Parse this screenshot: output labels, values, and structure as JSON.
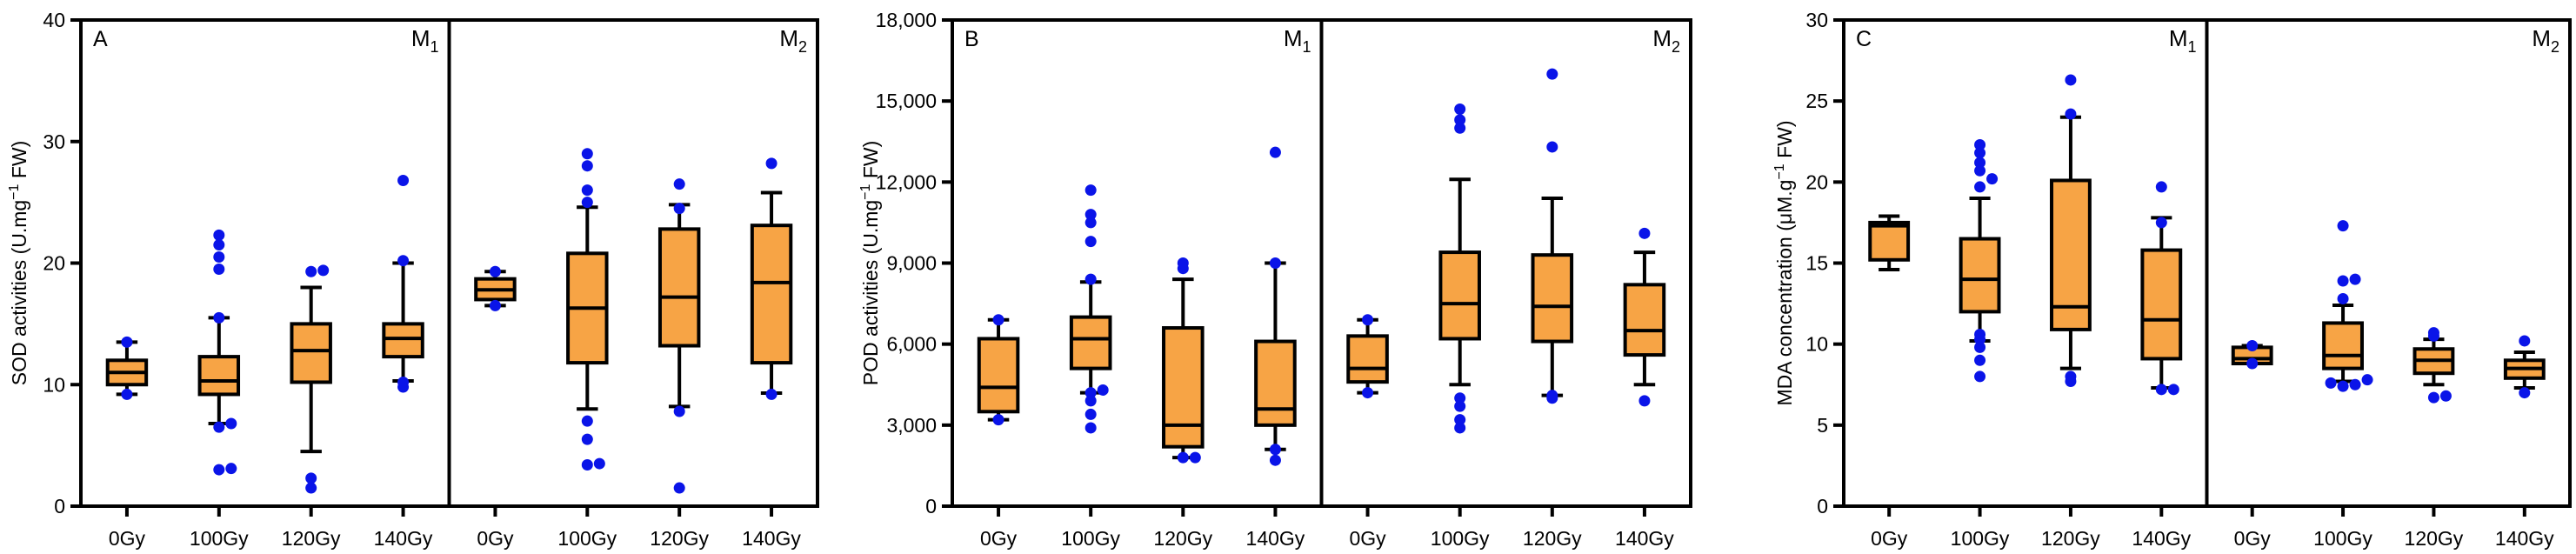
{
  "colors": {
    "box_fill": "#F7A445",
    "point": "#0A14E8",
    "line": "#000000"
  },
  "chart_data": [
    {
      "type": "box",
      "panel_label": "A",
      "ylabel_pre": "SOD activities (U.mg",
      "ylabel_sup": "−1",
      "ylabel_post": " FW)",
      "ylim": [
        0,
        40
      ],
      "yticks": [
        0,
        10,
        20,
        30,
        40
      ],
      "ytick_labels": [
        "0",
        "10",
        "20",
        "30",
        "40"
      ],
      "categories": [
        "0Gy",
        "100Gy",
        "120Gy",
        "140Gy"
      ],
      "groups": [
        {
          "name": "M",
          "sub": "1",
          "boxes": [
            {
              "category": "0Gy",
              "whisker_low": 9.2,
              "q1": 10.0,
              "median": 11.0,
              "q3": 12.0,
              "whisker_high": 13.5,
              "outliers": [
                9.2,
                13.5
              ]
            },
            {
              "category": "100Gy",
              "whisker_low": 6.8,
              "q1": 9.2,
              "median": 10.3,
              "q3": 12.3,
              "whisker_high": 15.5,
              "outliers": [
                3.0,
                3.1,
                6.5,
                6.8,
                15.5,
                19.5,
                20.5,
                21.5,
                22.3
              ]
            },
            {
              "category": "120Gy",
              "whisker_low": 4.5,
              "q1": 10.2,
              "median": 12.8,
              "q3": 15.0,
              "whisker_high": 18.0,
              "outliers": [
                1.5,
                2.3,
                19.3,
                19.4
              ]
            },
            {
              "category": "140Gy",
              "whisker_low": 10.3,
              "q1": 12.3,
              "median": 13.8,
              "q3": 15.0,
              "whisker_high": 20.0,
              "outliers": [
                9.8,
                10.2,
                20.2,
                26.8
              ]
            }
          ]
        },
        {
          "name": "M",
          "sub": "2",
          "boxes": [
            {
              "category": "0Gy",
              "whisker_low": 16.5,
              "q1": 17.0,
              "median": 17.8,
              "q3": 18.7,
              "whisker_high": 19.3,
              "outliers": [
                16.5,
                19.3
              ]
            },
            {
              "category": "100Gy",
              "whisker_low": 8.0,
              "q1": 11.8,
              "median": 16.3,
              "q3": 20.8,
              "whisker_high": 24.6,
              "outliers": [
                3.4,
                3.5,
                5.5,
                7.0,
                25.0,
                26.0,
                28.0,
                29.0
              ]
            },
            {
              "category": "120Gy",
              "whisker_low": 8.2,
              "q1": 13.2,
              "median": 17.2,
              "q3": 22.8,
              "whisker_high": 24.8,
              "outliers": [
                1.5,
                7.8,
                24.5,
                26.5
              ]
            },
            {
              "category": "140Gy",
              "whisker_low": 9.3,
              "q1": 11.8,
              "median": 18.4,
              "q3": 23.1,
              "whisker_high": 25.8,
              "outliers": [
                9.2,
                28.2
              ]
            }
          ]
        }
      ]
    },
    {
      "type": "box",
      "panel_label": "B",
      "ylabel_pre": "POD activities (U.mg",
      "ylabel_sup": "−1",
      "ylabel_post": " FW)",
      "ylim": [
        0,
        18000
      ],
      "yticks": [
        0,
        3000,
        6000,
        9000,
        12000,
        15000,
        18000
      ],
      "ytick_labels": [
        "0",
        "3,000",
        "6,000",
        "9,000",
        "12,000",
        "15,000",
        "18,000"
      ],
      "categories": [
        "0Gy",
        "100Gy",
        "120Gy",
        "140Gy"
      ],
      "groups": [
        {
          "name": "M",
          "sub": "1",
          "boxes": [
            {
              "category": "0Gy",
              "whisker_low": 3200,
              "q1": 3500,
              "median": 4400,
              "q3": 6200,
              "whisker_high": 6900,
              "outliers": [
                3200,
                6900
              ]
            },
            {
              "category": "100Gy",
              "whisker_low": 4200,
              "q1": 5100,
              "median": 6200,
              "q3": 7000,
              "whisker_high": 8300,
              "outliers": [
                2900,
                3400,
                3900,
                4200,
                4300,
                8400,
                9800,
                10500,
                10800,
                11700
              ]
            },
            {
              "category": "120Gy",
              "whisker_low": 1800,
              "q1": 2200,
              "median": 3000,
              "q3": 6600,
              "whisker_high": 8400,
              "outliers": [
                1800,
                1800,
                8800,
                9000
              ]
            },
            {
              "category": "140Gy",
              "whisker_low": 2100,
              "q1": 3000,
              "median": 3600,
              "q3": 6100,
              "whisker_high": 9000,
              "outliers": [
                1700,
                2100,
                9000,
                13100
              ]
            }
          ]
        },
        {
          "name": "M",
          "sub": "2",
          "boxes": [
            {
              "category": "0Gy",
              "whisker_low": 4200,
              "q1": 4600,
              "median": 5100,
              "q3": 6300,
              "whisker_high": 6900,
              "outliers": [
                4200,
                6900
              ]
            },
            {
              "category": "100Gy",
              "whisker_low": 4500,
              "q1": 6200,
              "median": 7500,
              "q3": 9400,
              "whisker_high": 12100,
              "outliers": [
                2900,
                3200,
                3700,
                4000,
                14000,
                14300,
                14700
              ]
            },
            {
              "category": "120Gy",
              "whisker_low": 4100,
              "q1": 6100,
              "median": 7400,
              "q3": 9300,
              "whisker_high": 11400,
              "outliers": [
                4000,
                4100,
                13300,
                16000
              ]
            },
            {
              "category": "140Gy",
              "whisker_low": 4500,
              "q1": 5600,
              "median": 6500,
              "q3": 8200,
              "whisker_high": 9400,
              "outliers": [
                3900,
                10100
              ]
            }
          ]
        }
      ]
    },
    {
      "type": "box",
      "panel_label": "C",
      "ylabel_pre": "MDA concentration (μM.g",
      "ylabel_sup": "−1",
      "ylabel_post": " FW)",
      "ylim": [
        0,
        30
      ],
      "yticks": [
        0,
        5,
        10,
        15,
        20,
        25,
        30
      ],
      "ytick_labels": [
        "0",
        "5",
        "10",
        "15",
        "20",
        "25",
        "30"
      ],
      "categories": [
        "0Gy",
        "100Gy",
        "120Gy",
        "140Gy"
      ],
      "groups": [
        {
          "name": "M",
          "sub": "1",
          "boxes": [
            {
              "category": "0Gy",
              "whisker_low": 14.6,
              "q1": 15.2,
              "median": 17.3,
              "q3": 17.5,
              "whisker_high": 17.9,
              "outliers": []
            },
            {
              "category": "100Gy",
              "whisker_low": 10.2,
              "q1": 12.0,
              "median": 14.0,
              "q3": 16.5,
              "whisker_high": 19.0,
              "outliers": [
                8.0,
                9.0,
                9.8,
                10.3,
                10.6,
                19.7,
                20.2,
                20.7,
                21.2,
                21.8,
                22.3
              ]
            },
            {
              "category": "120Gy",
              "whisker_low": 8.5,
              "q1": 10.9,
              "median": 12.3,
              "q3": 20.1,
              "whisker_high": 24.0,
              "outliers": [
                7.7,
                8.0,
                24.2,
                26.3
              ]
            },
            {
              "category": "140Gy",
              "whisker_low": 7.3,
              "q1": 9.1,
              "median": 11.5,
              "q3": 15.8,
              "whisker_high": 17.8,
              "outliers": [
                7.2,
                7.2,
                17.5,
                19.7
              ]
            }
          ]
        },
        {
          "name": "M",
          "sub": "2",
          "boxes": [
            {
              "category": "0Gy",
              "whisker_low": 8.8,
              "q1": 8.8,
              "median": 9.1,
              "q3": 9.8,
              "whisker_high": 9.9,
              "outliers": [
                9.9,
                8.8
              ]
            },
            {
              "category": "100Gy",
              "whisker_low": 7.7,
              "q1": 8.5,
              "median": 9.3,
              "q3": 11.3,
              "whisker_high": 12.4,
              "outliers": [
                7.4,
                7.5,
                7.6,
                7.8,
                12.8,
                13.9,
                14.0,
                17.3
              ]
            },
            {
              "category": "120Gy",
              "whisker_low": 7.5,
              "q1": 8.2,
              "median": 9.0,
              "q3": 9.7,
              "whisker_high": 10.3,
              "outliers": [
                6.7,
                6.8,
                10.5,
                10.7
              ]
            },
            {
              "category": "140Gy",
              "whisker_low": 7.3,
              "q1": 7.9,
              "median": 8.5,
              "q3": 9.0,
              "whisker_high": 9.5,
              "outliers": [
                7.0,
                10.2
              ]
            }
          ]
        }
      ]
    }
  ]
}
